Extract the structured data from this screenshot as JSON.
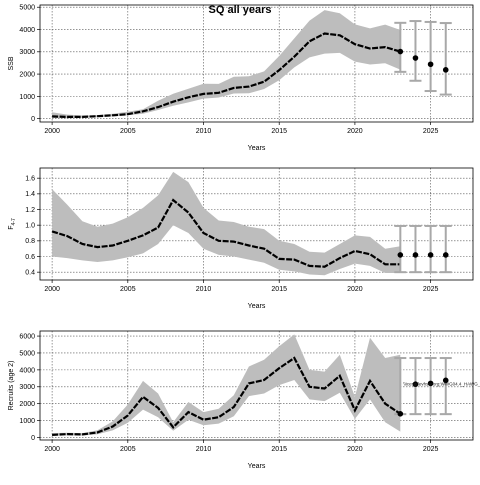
{
  "title": "SQ all years",
  "chart_data": [
    {
      "type": "line",
      "xlabel": "Years",
      "ylabel": "SSB",
      "xlim": [
        1999.2,
        2027.8
      ],
      "ylim": [
        -150,
        5100
      ],
      "xticks": [
        2000,
        2005,
        2010,
        2015,
        2020,
        2025
      ],
      "yticks": [
        0,
        1000,
        2000,
        3000,
        4000,
        5000
      ],
      "grid": true,
      "series": [
        {
          "role": "median",
          "x": [
            2000,
            2001,
            2002,
            2003,
            2004,
            2005,
            2006,
            2007,
            2008,
            2009,
            2010,
            2011,
            2012,
            2013,
            2014,
            2015,
            2016,
            2017,
            2018,
            2019,
            2020,
            2021,
            2022,
            2023
          ],
          "values": [
            100,
            80,
            80,
            110,
            150,
            200,
            330,
            520,
            760,
            960,
            1110,
            1160,
            1380,
            1440,
            1660,
            2180,
            2780,
            3470,
            3820,
            3740,
            3340,
            3150,
            3210,
            3010
          ]
        },
        {
          "role": "band-upper",
          "x": [
            2000,
            2001,
            2002,
            2003,
            2004,
            2005,
            2006,
            2007,
            2008,
            2009,
            2010,
            2011,
            2012,
            2013,
            2014,
            2015,
            2016,
            2017,
            2018,
            2019,
            2020,
            2021,
            2022,
            2023
          ],
          "values": [
            290,
            180,
            140,
            160,
            220,
            310,
            420,
            800,
            1120,
            1340,
            1570,
            1560,
            1880,
            1900,
            2120,
            2810,
            3600,
            4400,
            4870,
            4730,
            4230,
            4050,
            4220,
            3980
          ]
        },
        {
          "role": "band-lower",
          "x": [
            2000,
            2001,
            2002,
            2003,
            2004,
            2005,
            2006,
            2007,
            2008,
            2009,
            2010,
            2011,
            2012,
            2013,
            2014,
            2015,
            2016,
            2017,
            2018,
            2019,
            2020,
            2021,
            2022,
            2023
          ],
          "values": [
            30,
            20,
            40,
            70,
            100,
            150,
            220,
            390,
            580,
            730,
            900,
            950,
            1130,
            1140,
            1330,
            1720,
            2300,
            2750,
            2920,
            2950,
            2560,
            2430,
            2490,
            2200
          ]
        }
      ],
      "projection": {
        "x": [
          2023,
          2024,
          2025,
          2026
        ],
        "values": [
          3010,
          2720,
          2440,
          2190
        ],
        "upper": [
          4300,
          4380,
          4340,
          4290
        ],
        "lower": [
          2100,
          1700,
          1240,
          1080
        ]
      }
    },
    {
      "type": "line",
      "xlabel": "Years",
      "ylabel": "F4-7",
      "ylabel_main": "F",
      "ylabel_sub": "4-7",
      "xlim": [
        1999.2,
        2027.8
      ],
      "ylim": [
        0.3,
        1.73
      ],
      "xticks": [
        2000,
        2005,
        2010,
        2015,
        2020,
        2025
      ],
      "yticks": [
        0.4,
        0.6,
        0.8,
        1.0,
        1.2,
        1.4,
        1.6
      ],
      "ytick_labels": [
        "0.4",
        "0.6",
        "0.8",
        "1.0",
        "1.2",
        "1.4",
        "1.6"
      ],
      "grid": true,
      "series": [
        {
          "role": "median",
          "x": [
            2000,
            2001,
            2002,
            2003,
            2004,
            2005,
            2006,
            2007,
            2008,
            2009,
            2010,
            2011,
            2012,
            2013,
            2014,
            2015,
            2016,
            2017,
            2018,
            2019,
            2020,
            2021,
            2022,
            2023
          ],
          "values": [
            0.92,
            0.86,
            0.76,
            0.72,
            0.74,
            0.8,
            0.87,
            0.97,
            1.32,
            1.16,
            0.9,
            0.8,
            0.79,
            0.74,
            0.7,
            0.57,
            0.56,
            0.48,
            0.47,
            0.58,
            0.67,
            0.63,
            0.5,
            0.5
          ]
        },
        {
          "role": "band-upper",
          "x": [
            2000,
            2001,
            2002,
            2003,
            2004,
            2005,
            2006,
            2007,
            2008,
            2009,
            2010,
            2011,
            2012,
            2013,
            2014,
            2015,
            2016,
            2017,
            2018,
            2019,
            2020,
            2021,
            2022,
            2023
          ],
          "values": [
            1.46,
            1.26,
            1.05,
            0.98,
            1.02,
            1.1,
            1.22,
            1.38,
            1.68,
            1.55,
            1.22,
            1.06,
            1.04,
            0.98,
            0.95,
            0.8,
            0.76,
            0.66,
            0.65,
            0.76,
            0.87,
            0.85,
            0.7,
            0.73
          ]
        },
        {
          "role": "band-lower",
          "x": [
            2000,
            2001,
            2002,
            2003,
            2004,
            2005,
            2006,
            2007,
            2008,
            2009,
            2010,
            2011,
            2012,
            2013,
            2014,
            2015,
            2016,
            2017,
            2018,
            2019,
            2020,
            2021,
            2022,
            2023
          ],
          "values": [
            0.6,
            0.58,
            0.55,
            0.53,
            0.55,
            0.59,
            0.64,
            0.76,
            1.0,
            0.9,
            0.7,
            0.62,
            0.6,
            0.56,
            0.52,
            0.43,
            0.41,
            0.37,
            0.36,
            0.44,
            0.51,
            0.48,
            0.39,
            0.39
          ]
        }
      ],
      "projection": {
        "x": [
          2023,
          2024,
          2025,
          2026
        ],
        "values": [
          0.62,
          0.62,
          0.62,
          0.62
        ],
        "upper": [
          0.99,
          0.99,
          0.99,
          0.99
        ],
        "lower": [
          0.4,
          0.4,
          0.4,
          0.4
        ]
      }
    },
    {
      "type": "line",
      "xlabel": "Years",
      "ylabel": "Recruits (age 2)",
      "xlim": [
        1999.2,
        2027.8
      ],
      "ylim": [
        -150,
        6300
      ],
      "xticks": [
        2000,
        2005,
        2010,
        2015,
        2020,
        2025
      ],
      "yticks": [
        0,
        1000,
        2000,
        3000,
        4000,
        5000,
        6000
      ],
      "grid": true,
      "series": [
        {
          "role": "median",
          "x": [
            2000,
            2001,
            2002,
            2003,
            2004,
            2005,
            2006,
            2007,
            2008,
            2009,
            2010,
            2011,
            2012,
            2013,
            2014,
            2015,
            2016,
            2017,
            2018,
            2019,
            2020,
            2021,
            2022,
            2023
          ],
          "values": [
            150,
            200,
            180,
            300,
            650,
            1300,
            2400,
            1750,
            600,
            1500,
            1050,
            1200,
            1800,
            3200,
            3400,
            4100,
            4700,
            3000,
            2900,
            3650,
            1600,
            3350,
            2000,
            1400
          ]
        },
        {
          "role": "band-upper",
          "x": [
            2000,
            2001,
            2002,
            2003,
            2004,
            2005,
            2006,
            2007,
            2008,
            2009,
            2010,
            2011,
            2012,
            2013,
            2014,
            2015,
            2016,
            2017,
            2018,
            2019,
            2020,
            2021,
            2022,
            2023
          ],
          "values": [
            260,
            280,
            260,
            430,
            950,
            1950,
            3350,
            2600,
            900,
            2100,
            1500,
            1700,
            2500,
            4200,
            4600,
            5400,
            6100,
            4000,
            3900,
            4900,
            2400,
            5900,
            4700,
            4900
          ]
        },
        {
          "role": "band-lower",
          "x": [
            2000,
            2001,
            2002,
            2003,
            2004,
            2005,
            2006,
            2007,
            2008,
            2009,
            2010,
            2011,
            2012,
            2013,
            2014,
            2015,
            2016,
            2017,
            2018,
            2019,
            2020,
            2021,
            2022,
            2023
          ],
          "values": [
            90,
            120,
            110,
            190,
            420,
            870,
            1650,
            1200,
            400,
            1050,
            720,
            820,
            1250,
            2450,
            2600,
            3100,
            3400,
            2250,
            2150,
            2650,
            1100,
            2250,
            900,
            350
          ]
        }
      ],
      "projection": {
        "x": [
          2023,
          2024,
          2025,
          2026
        ],
        "values": [
          1400,
          3150,
          3200,
          3380
        ],
        "upper": [
          4700,
          4700,
          4700,
          4700
        ],
        "lower": [
          1380,
          1380,
          1380,
          1380
        ]
      },
      "annotation": "\\\\icesgdevhsw:org:WWG04.4_HAWG_Stock_HergWest.718344_glomscgPasDoda"
    }
  ],
  "colors": {
    "band": "#bdbdbd",
    "line": "#000000",
    "interval": "#a8a8a8",
    "grid": "#555555"
  }
}
